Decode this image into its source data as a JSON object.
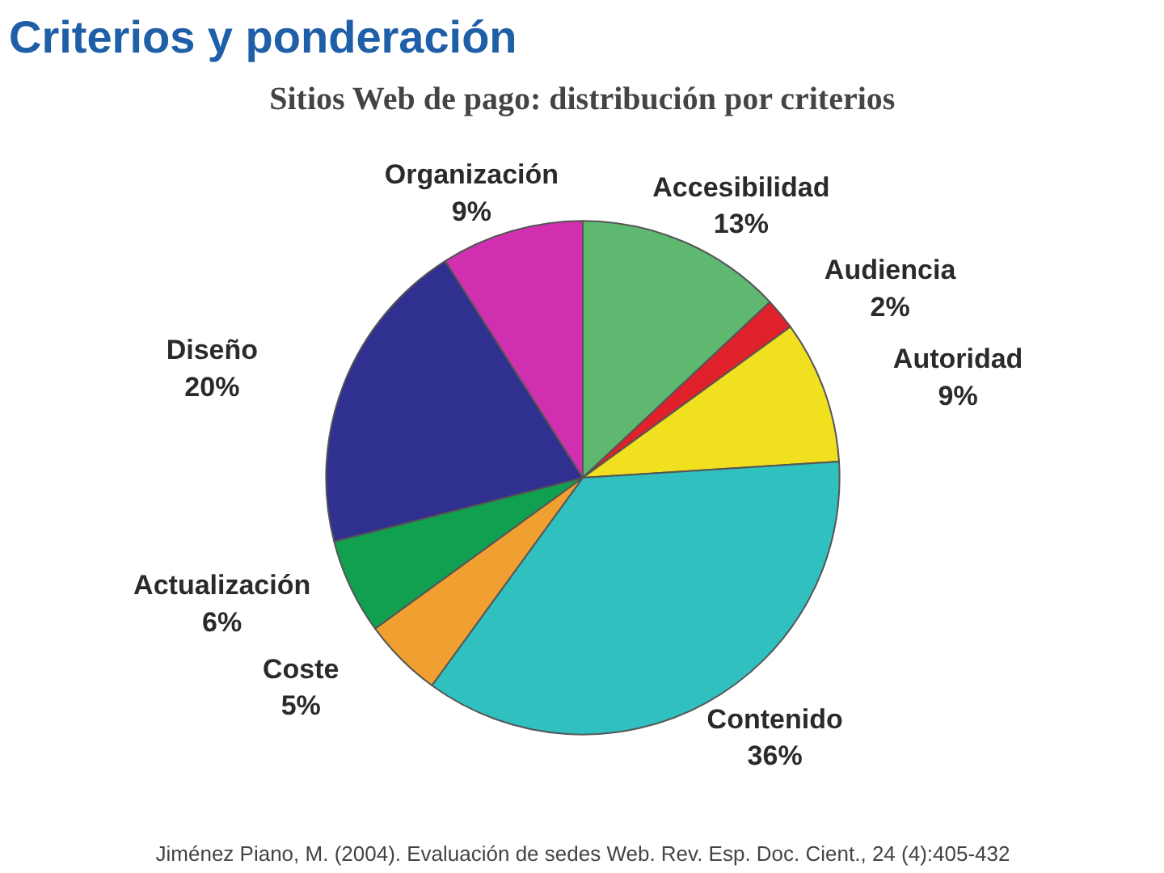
{
  "chart_data": {
    "type": "pie",
    "title": "Criterios y ponderación",
    "subtitle": "Sitios Web de pago: distribución por criterios",
    "categories": [
      "Accesibilidad",
      "Audiencia",
      "Autoridad",
      "Contenido",
      "Coste",
      "Actualización",
      "Diseño",
      "Organización"
    ],
    "values": [
      13,
      2,
      9,
      36,
      5,
      6,
      20,
      9
    ],
    "value_labels": [
      "13%",
      "2%",
      "9%",
      "36%",
      "5%",
      "6%",
      "20%",
      "9%"
    ],
    "colors": [
      "#5fb870",
      "#e0202a",
      "#f0e020",
      "#30c0c0",
      "#f0a030",
      "#10a050",
      "#303090",
      "#d030b0"
    ],
    "annotations": [
      "Jiménez Piano, M. (2004). Evaluación de sedes Web. Rev. Esp. Doc. Cient., 24 (4):405-432"
    ]
  }
}
